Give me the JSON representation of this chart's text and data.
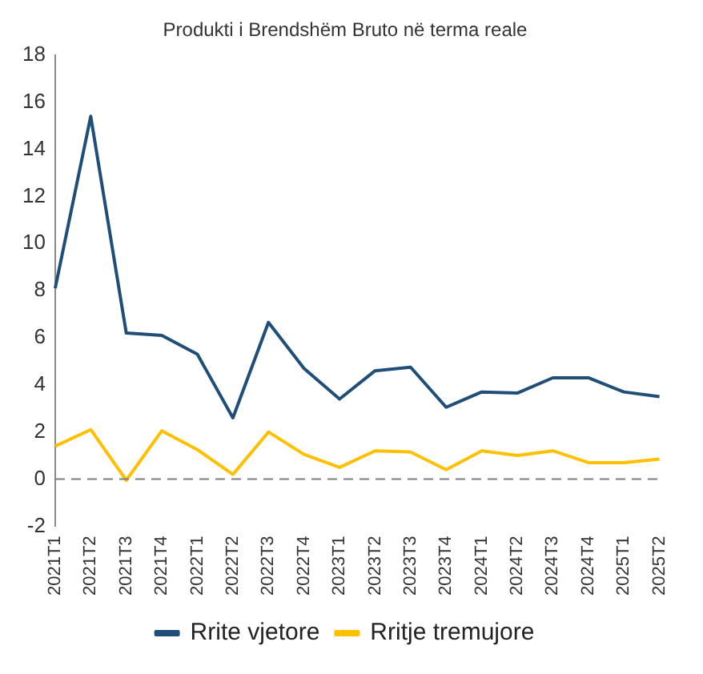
{
  "chart_data": {
    "type": "line",
    "title": "Produkti i Brendshëm Bruto në terma reale",
    "categories": [
      "2021T1",
      "2021T2",
      "2021T3",
      "2021T4",
      "2022T1",
      "2022T2",
      "2022T3",
      "2022T4",
      "2023T1",
      "2023T2",
      "2023T3",
      "2023T4",
      "2024T1",
      "2024T2",
      "2024T3",
      "2024T4",
      "2025T1",
      "2025T2"
    ],
    "series": [
      {
        "name": "Rrite vjetore",
        "color": "#1f4e79",
        "values": [
          8.1,
          15.4,
          6.2,
          6.1,
          5.3,
          2.6,
          6.65,
          4.7,
          3.4,
          4.6,
          4.75,
          3.05,
          3.7,
          3.65,
          4.3,
          4.3,
          3.7,
          3.5
        ]
      },
      {
        "name": "Rritje tremujore",
        "color": "#ffc000",
        "values": [
          1.4,
          2.1,
          -0.05,
          2.05,
          1.25,
          0.2,
          2.0,
          1.05,
          0.5,
          1.2,
          1.15,
          0.4,
          1.2,
          1.0,
          1.2,
          0.7,
          0.7,
          0.85
        ]
      }
    ],
    "ylim": [
      -2,
      18
    ],
    "yticks": [
      -2,
      0,
      2,
      4,
      6,
      8,
      10,
      12,
      14,
      16,
      18
    ],
    "grid": false,
    "legend": "bottom",
    "marker": "none",
    "line_style": "solid",
    "ref_lines": [
      {
        "axis": "y",
        "value": 0,
        "color": "#7f7f7f",
        "line_style": "dashed"
      }
    ]
  }
}
